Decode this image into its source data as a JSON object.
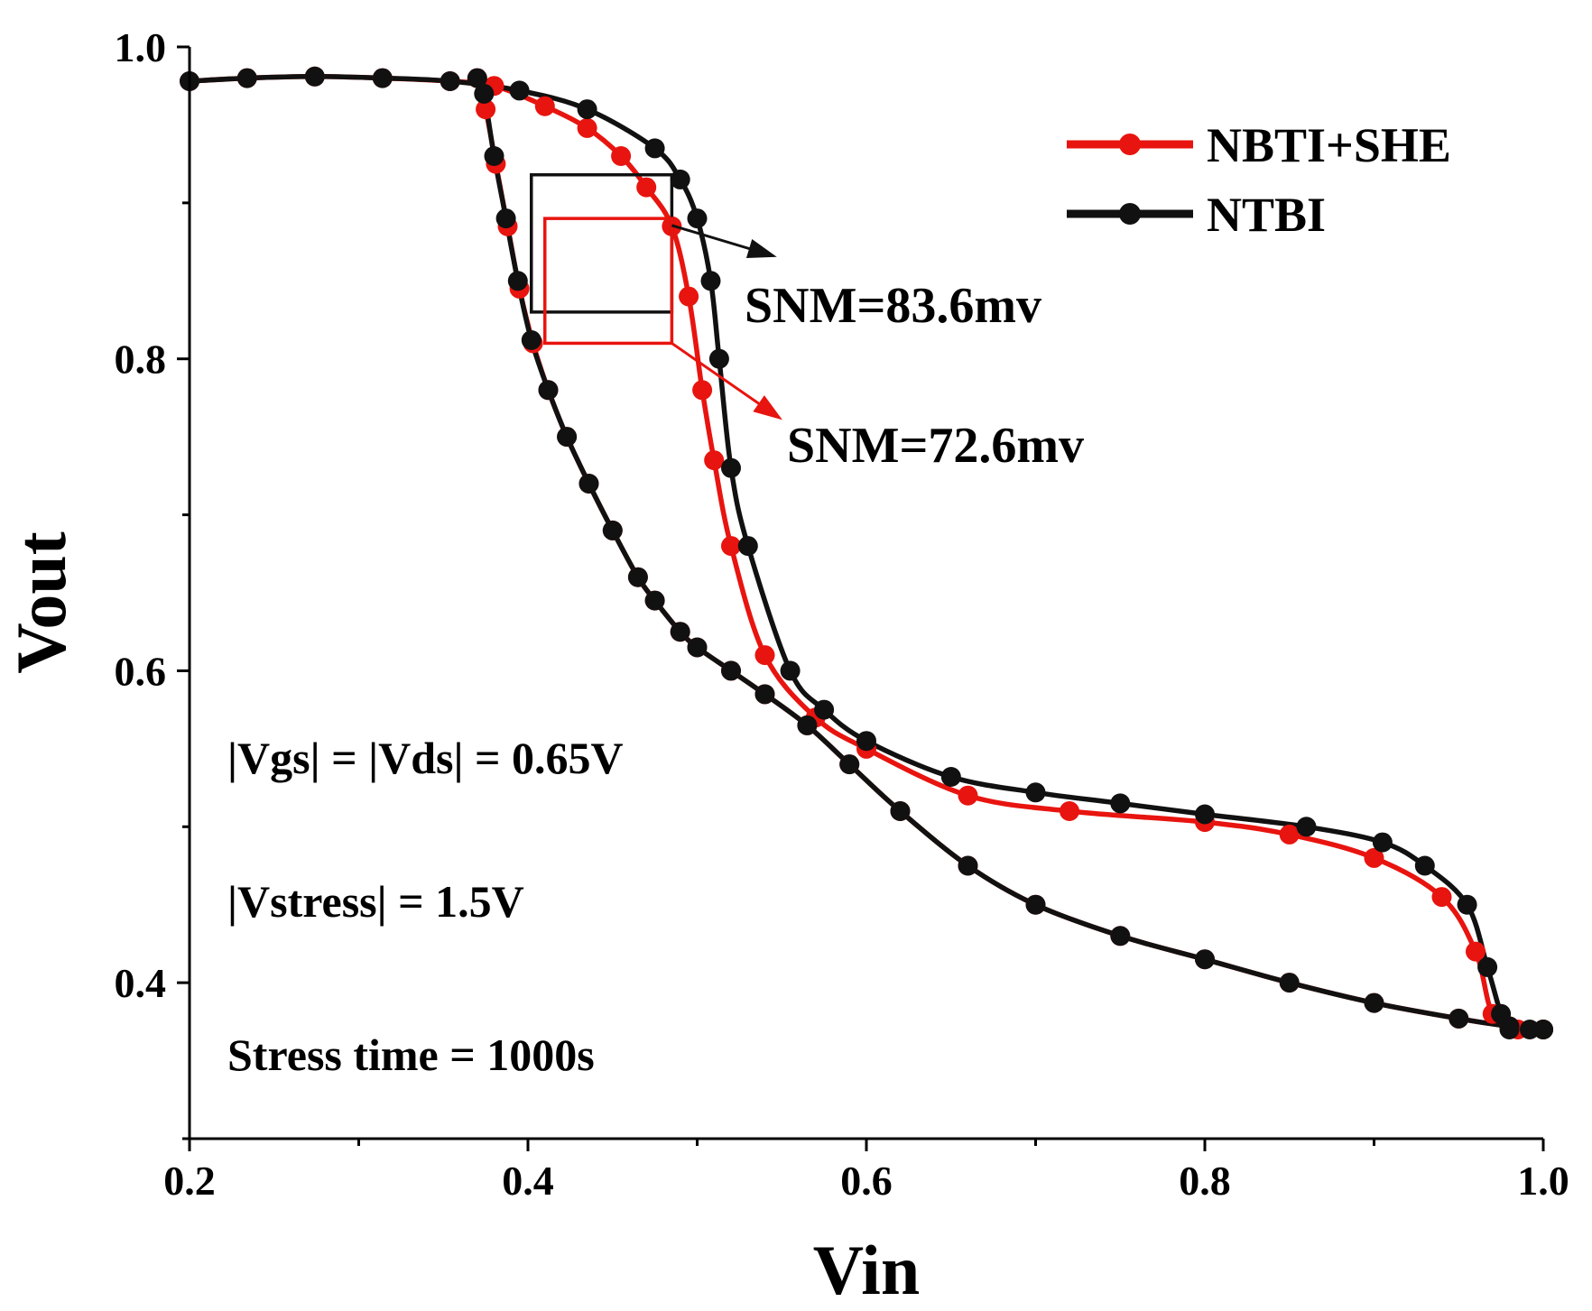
{
  "chart_data": {
    "type": "line",
    "title": "",
    "xlabel": "Vin",
    "ylabel": "Vout",
    "xlim": [
      0.2,
      1.0
    ],
    "ylim": [
      0.3,
      1.0
    ],
    "x_ticks": [
      0.2,
      0.4,
      0.6,
      0.8,
      1.0
    ],
    "x_tick_labels": [
      "0.2",
      "0.4",
      "0.6",
      "0.8",
      "1.0"
    ],
    "y_ticks": [
      0.4,
      0.6,
      0.8,
      1.0
    ],
    "y_tick_labels": [
      "0.4",
      "0.6",
      "0.8",
      "1.0"
    ],
    "grid": false,
    "legend_position": "top-right",
    "series": [
      {
        "name": "NBTI+SHE",
        "color": "#e8140f",
        "curves": [
          {
            "x": [
              0.2,
              0.234,
              0.274,
              0.314,
              0.354,
              0.38,
              0.41,
              0.435,
              0.455,
              0.47,
              0.485,
              0.495,
              0.503,
              0.51,
              0.52,
              0.54,
              0.57,
              0.6,
              0.66,
              0.72,
              0.8,
              0.85,
              0.9,
              0.94,
              0.96,
              0.97,
              0.985,
              1.0
            ],
            "y": [
              0.978,
              0.98,
              0.981,
              0.98,
              0.978,
              0.975,
              0.962,
              0.948,
              0.93,
              0.91,
              0.885,
              0.84,
              0.78,
              0.735,
              0.68,
              0.61,
              0.57,
              0.55,
              0.52,
              0.51,
              0.503,
              0.495,
              0.48,
              0.455,
              0.42,
              0.38,
              0.37,
              0.37
            ]
          },
          {
            "x": [
              0.37,
              0.375,
              0.381,
              0.388,
              0.395,
              0.403,
              0.412,
              0.423,
              0.436,
              0.45,
              0.465,
              0.475,
              0.49,
              0.5,
              0.52,
              0.54,
              0.565,
              0.59,
              0.62,
              0.66,
              0.7,
              0.75,
              0.8,
              0.85,
              0.9,
              0.95,
              0.98,
              1.0
            ],
            "y": [
              0.98,
              0.96,
              0.925,
              0.885,
              0.845,
              0.81,
              0.78,
              0.75,
              0.72,
              0.69,
              0.66,
              0.645,
              0.625,
              0.615,
              0.6,
              0.585,
              0.565,
              0.54,
              0.51,
              0.475,
              0.45,
              0.43,
              0.415,
              0.4,
              0.387,
              0.377,
              0.372,
              0.37
            ]
          }
        ]
      },
      {
        "name": "NTBI",
        "color": "#111111",
        "curves": [
          {
            "x": [
              0.2,
              0.234,
              0.274,
              0.314,
              0.354,
              0.395,
              0.435,
              0.475,
              0.49,
              0.5,
              0.508,
              0.513,
              0.52,
              0.53,
              0.555,
              0.575,
              0.6,
              0.65,
              0.7,
              0.75,
              0.8,
              0.86,
              0.905,
              0.93,
              0.955,
              0.967,
              0.975,
              0.98,
              0.992,
              1.0
            ],
            "y": [
              0.978,
              0.98,
              0.981,
              0.98,
              0.978,
              0.972,
              0.96,
              0.935,
              0.915,
              0.89,
              0.85,
              0.8,
              0.73,
              0.68,
              0.6,
              0.575,
              0.555,
              0.532,
              0.522,
              0.515,
              0.508,
              0.5,
              0.49,
              0.475,
              0.45,
              0.41,
              0.38,
              0.37,
              0.37,
              0.37
            ]
          },
          {
            "x": [
              0.37,
              0.374,
              0.38,
              0.387,
              0.394,
              0.402,
              0.412,
              0.423,
              0.436,
              0.45,
              0.465,
              0.475,
              0.49,
              0.5,
              0.52,
              0.54,
              0.565,
              0.59,
              0.62,
              0.66,
              0.7,
              0.75,
              0.8,
              0.85,
              0.9,
              0.95,
              0.98,
              1.0
            ],
            "y": [
              0.98,
              0.97,
              0.93,
              0.89,
              0.85,
              0.812,
              0.78,
              0.75,
              0.72,
              0.69,
              0.66,
              0.645,
              0.625,
              0.615,
              0.6,
              0.585,
              0.565,
              0.54,
              0.51,
              0.475,
              0.45,
              0.43,
              0.415,
              0.4,
              0.387,
              0.377,
              0.372,
              0.37
            ]
          }
        ]
      }
    ],
    "annotations": {
      "snm_black": {
        "label": "SNM=83.6mv",
        "color": "#111111",
        "box": {
          "x0": 0.402,
          "x1": 0.485,
          "y0": 0.83,
          "y1": 0.918
        }
      },
      "snm_red": {
        "label": "SNM=72.6mv",
        "color": "#e8140f",
        "box": {
          "x0": 0.41,
          "x1": 0.485,
          "y0": 0.81,
          "y1": 0.89
        }
      },
      "notes": [
        "|Vgs| = |Vds| = 0.65V",
        "|Vstress| = 1.5V",
        "Stress time = 1000s"
      ]
    }
  }
}
